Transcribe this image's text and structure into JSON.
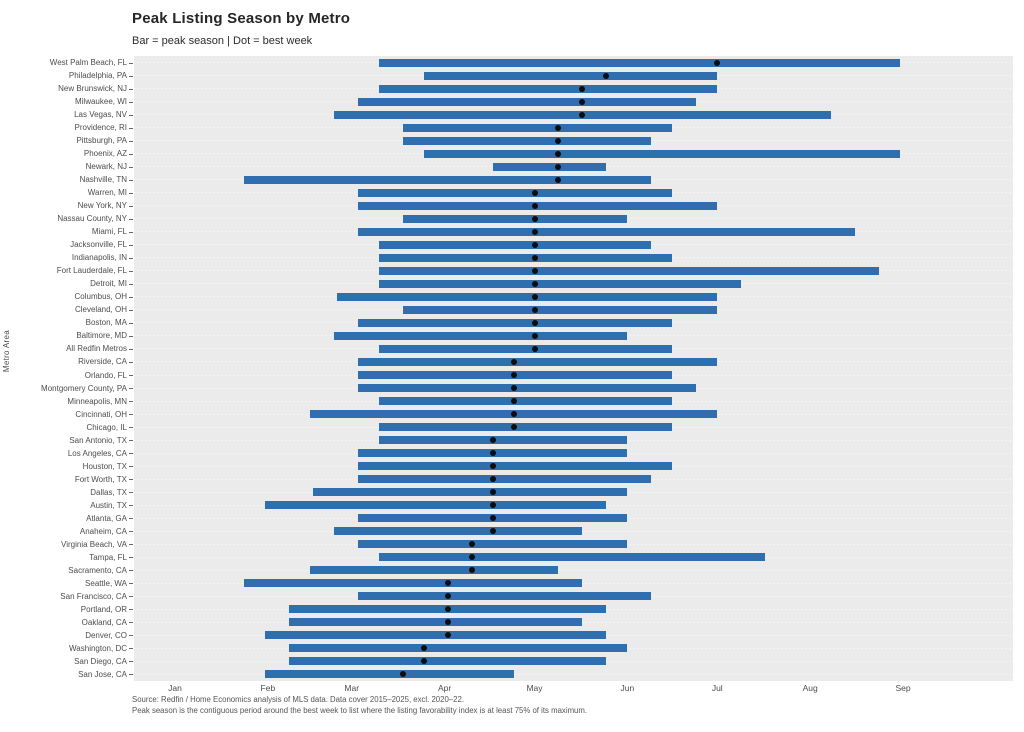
{
  "chart": {
    "title": "Peak Listing Season by Metro",
    "subtitle": "Bar = peak season | Dot = best week",
    "y_axis_label": "Metro Area",
    "footnote1": "Source: Redfin / Home Economics analysis of MLS data. Data cover 2015–2025, excl. 2020–22.",
    "footnote2": "Peak season is the contiguous period around the best week to list where the listing favorability index is at least 75% of its maximum."
  },
  "chart_data": {
    "type": "bar",
    "subtype": "horizontal-range-bars-with-dot-markers",
    "legend_note": "Bar = peak season, Dot = best week",
    "x_unit": "day of year (Jan 1 = 0)",
    "x_ticks": [
      "Jan",
      "Feb",
      "Mar",
      "Apr",
      "May",
      "Jun",
      "Jul",
      "Aug",
      "Sep"
    ],
    "x_tick_days": [
      0,
      31,
      59,
      90,
      120,
      151,
      181,
      212,
      243
    ],
    "xlim_days": [
      -14,
      280
    ],
    "grid": "horizontal dotted line per row",
    "panel_bg": "#EBEBEB",
    "bar_color": "#2F6FAF",
    "dot_color": "#0d0d0d",
    "rows": [
      {
        "label": "West Palm Beach, FL",
        "start": 68,
        "end": 242,
        "best": 181
      },
      {
        "label": "Philadelphia, PA",
        "start": 83,
        "end": 181,
        "best": 144
      },
      {
        "label": "New Brunswick, NJ",
        "start": 68,
        "end": 181,
        "best": 136
      },
      {
        "label": "Milwaukee, WI",
        "start": 61,
        "end": 174,
        "best": 136
      },
      {
        "label": "Las Vegas, NV",
        "start": 53,
        "end": 219,
        "best": 136
      },
      {
        "label": "Providence, RI",
        "start": 76,
        "end": 166,
        "best": 128
      },
      {
        "label": "Pittsburgh, PA",
        "start": 76,
        "end": 159,
        "best": 128
      },
      {
        "label": "Phoenix, AZ",
        "start": 83,
        "end": 242,
        "best": 128
      },
      {
        "label": "Newark, NJ",
        "start": 106,
        "end": 144,
        "best": 128
      },
      {
        "label": "Nashville, TN",
        "start": 23,
        "end": 159,
        "best": 128
      },
      {
        "label": "Warren, MI",
        "start": 61,
        "end": 166,
        "best": 120
      },
      {
        "label": "New York, NY",
        "start": 61,
        "end": 181,
        "best": 120
      },
      {
        "label": "Nassau County, NY",
        "start": 76,
        "end": 151,
        "best": 120
      },
      {
        "label": "Miami, FL",
        "start": 61,
        "end": 227,
        "best": 120
      },
      {
        "label": "Jacksonville, FL",
        "start": 68,
        "end": 159,
        "best": 120
      },
      {
        "label": "Indianapolis, IN",
        "start": 68,
        "end": 166,
        "best": 120
      },
      {
        "label": "Fort Lauderdale, FL",
        "start": 68,
        "end": 235,
        "best": 120
      },
      {
        "label": "Detroit, MI",
        "start": 68,
        "end": 189,
        "best": 120
      },
      {
        "label": "Columbus, OH",
        "start": 54,
        "end": 181,
        "best": 120
      },
      {
        "label": "Cleveland, OH",
        "start": 76,
        "end": 181,
        "best": 120
      },
      {
        "label": "Boston, MA",
        "start": 61,
        "end": 166,
        "best": 120
      },
      {
        "label": "Baltimore, MD",
        "start": 53,
        "end": 151,
        "best": 120
      },
      {
        "label": "All Redfin Metros",
        "start": 68,
        "end": 166,
        "best": 120
      },
      {
        "label": "Riverside, CA",
        "start": 61,
        "end": 181,
        "best": 113
      },
      {
        "label": "Orlando, FL",
        "start": 61,
        "end": 166,
        "best": 113
      },
      {
        "label": "Montgomery County, PA",
        "start": 61,
        "end": 174,
        "best": 113
      },
      {
        "label": "Minneapolis, MN",
        "start": 68,
        "end": 166,
        "best": 113
      },
      {
        "label": "Cincinnati, OH",
        "start": 45,
        "end": 181,
        "best": 113
      },
      {
        "label": "Chicago, IL",
        "start": 68,
        "end": 166,
        "best": 113
      },
      {
        "label": "San Antonio, TX",
        "start": 68,
        "end": 151,
        "best": 106
      },
      {
        "label": "Los Angeles, CA",
        "start": 61,
        "end": 151,
        "best": 106
      },
      {
        "label": "Houston, TX",
        "start": 61,
        "end": 166,
        "best": 106
      },
      {
        "label": "Fort Worth, TX",
        "start": 61,
        "end": 159,
        "best": 106
      },
      {
        "label": "Dallas, TX",
        "start": 46,
        "end": 151,
        "best": 106
      },
      {
        "label": "Austin, TX",
        "start": 30,
        "end": 144,
        "best": 106
      },
      {
        "label": "Atlanta, GA",
        "start": 61,
        "end": 151,
        "best": 106
      },
      {
        "label": "Anaheim, CA",
        "start": 53,
        "end": 136,
        "best": 106
      },
      {
        "label": "Virginia Beach, VA",
        "start": 61,
        "end": 151,
        "best": 99
      },
      {
        "label": "Tampa, FL",
        "start": 68,
        "end": 197,
        "best": 99
      },
      {
        "label": "Sacramento, CA",
        "start": 45,
        "end": 128,
        "best": 99
      },
      {
        "label": "Seattle, WA",
        "start": 23,
        "end": 136,
        "best": 91
      },
      {
        "label": "San Francisco, CA",
        "start": 61,
        "end": 159,
        "best": 91
      },
      {
        "label": "Portland, OR",
        "start": 38,
        "end": 144,
        "best": 91
      },
      {
        "label": "Oakland, CA",
        "start": 38,
        "end": 136,
        "best": 91
      },
      {
        "label": "Denver, CO",
        "start": 30,
        "end": 144,
        "best": 91
      },
      {
        "label": "Washington, DC",
        "start": 38,
        "end": 151,
        "best": 83
      },
      {
        "label": "San Diego, CA",
        "start": 38,
        "end": 144,
        "best": 83
      },
      {
        "label": "San Jose, CA",
        "start": 30,
        "end": 113,
        "best": 76
      }
    ]
  }
}
